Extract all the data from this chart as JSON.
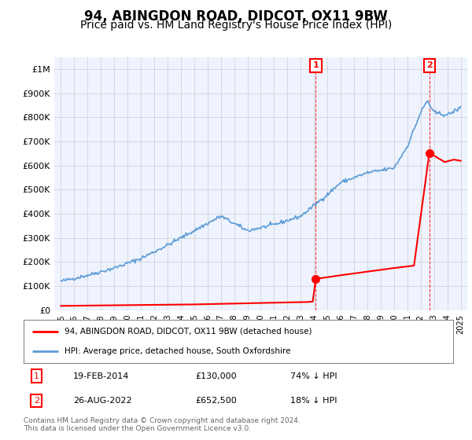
{
  "title": "94, ABINGDON ROAD, DIDCOT, OX11 9BW",
  "subtitle": "Price paid vs. HM Land Registry's House Price Index (HPI)",
  "title_fontsize": 12,
  "subtitle_fontsize": 10,
  "ylim": [
    0,
    1050000
  ],
  "yticks": [
    0,
    100000,
    200000,
    300000,
    400000,
    500000,
    600000,
    700000,
    800000,
    900000,
    1000000
  ],
  "ytick_labels": [
    "£0",
    "£100K",
    "£200K",
    "£300K",
    "£400K",
    "£500K",
    "£600K",
    "£700K",
    "£800K",
    "£900K",
    "£1M"
  ],
  "hpi_color": "#5B9BD5",
  "property_color": "#FF0000",
  "sale1_date": "19-FEB-2014",
  "sale1_price": 130000,
  "sale1_year": 2014.13,
  "sale2_date": "26-AUG-2022",
  "sale2_price": 652500,
  "sale2_year": 2022.65,
  "sale1_pct": "74% ↓ HPI",
  "sale2_pct": "18% ↓ HPI",
  "legend_line1": "94, ABINGDON ROAD, DIDCOT, OX11 9BW (detached house)",
  "legend_line2": "HPI: Average price, detached house, South Oxfordshire",
  "footnote": "Contains HM Land Registry data © Crown copyright and database right 2024.\nThis data is licensed under the Open Government Licence v3.0.",
  "background_color": "#FFFFFF",
  "plot_bg_color": "#EEF3FF",
  "hpi_anchor_years": [
    1995,
    1997,
    1999,
    2001,
    2003,
    2005,
    2007,
    2008,
    2009,
    2011,
    2013,
    2015,
    2016,
    2018,
    2020,
    2021,
    2022,
    2022.5,
    2023,
    2024,
    2025
  ],
  "hpi_anchor_values": [
    120000,
    145000,
    175000,
    215000,
    270000,
    330000,
    390000,
    360000,
    330000,
    355000,
    390000,
    480000,
    530000,
    570000,
    590000,
    680000,
    820000,
    870000,
    820000,
    810000,
    840000
  ],
  "prop_years": [
    1995,
    2005,
    2010,
    2013.5,
    2013.9,
    2014.13,
    2016,
    2018,
    2020,
    2021.5,
    2022.65,
    2023.2,
    2023.8,
    2024.5,
    2025
  ],
  "prop_values": [
    18000,
    24000,
    30000,
    34000,
    36000,
    130000,
    145000,
    160000,
    175000,
    185000,
    652500,
    635000,
    615000,
    625000,
    620000
  ]
}
